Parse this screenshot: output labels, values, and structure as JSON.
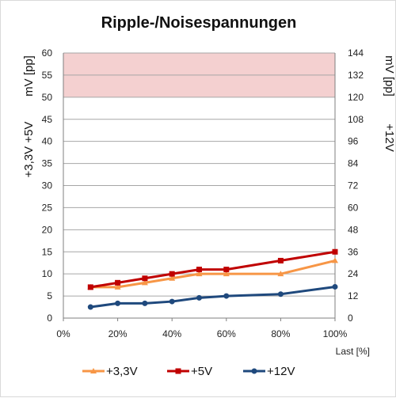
{
  "chart_data": {
    "type": "line",
    "title": "Ripple-/Noisespannungen",
    "xlabel": "Last [%]",
    "ylabel_left_top": "mV [pp]",
    "ylabel_left_bottom": "+3,3V +5V",
    "ylabel_right_top": "mV [pp]",
    "ylabel_right_bottom": "+12V",
    "x_ticks": [
      "0%",
      "20%",
      "40%",
      "60%",
      "80%",
      "100%"
    ],
    "x_range": [
      0,
      100
    ],
    "y_left_range": [
      0,
      60
    ],
    "y_left_ticks": [
      "0",
      "5",
      "10",
      "15",
      "20",
      "25",
      "30",
      "35",
      "40",
      "45",
      "50",
      "55",
      "60"
    ],
    "y_right_range": [
      0,
      144
    ],
    "y_right_ticks": [
      "0",
      "12",
      "24",
      "36",
      "48",
      "60",
      "72",
      "84",
      "96",
      "108",
      "120",
      "132",
      "144"
    ],
    "limit_band_left": [
      50,
      60
    ],
    "limit_band_color": "#f4d0d0",
    "grid": true,
    "legend_position": "bottom",
    "series": [
      {
        "name": "+3,3V",
        "axis": "left",
        "color": "#f79646",
        "marker": "triangle",
        "x": [
          10,
          20,
          30,
          40,
          50,
          60,
          80,
          100
        ],
        "values": [
          7,
          7,
          8,
          9,
          10,
          10,
          10,
          13
        ]
      },
      {
        "name": "+5V",
        "axis": "left",
        "color": "#c00000",
        "marker": "square",
        "x": [
          10,
          20,
          30,
          40,
          50,
          60,
          80,
          100
        ],
        "values": [
          7,
          8,
          9,
          10,
          11,
          11,
          13,
          15
        ]
      },
      {
        "name": "+12V",
        "axis": "right",
        "color": "#1f497d",
        "marker": "circle",
        "x": [
          10,
          20,
          30,
          40,
          50,
          60,
          80,
          100
        ],
        "values": [
          6,
          8,
          8,
          9,
          11,
          12,
          13,
          17
        ]
      }
    ]
  }
}
